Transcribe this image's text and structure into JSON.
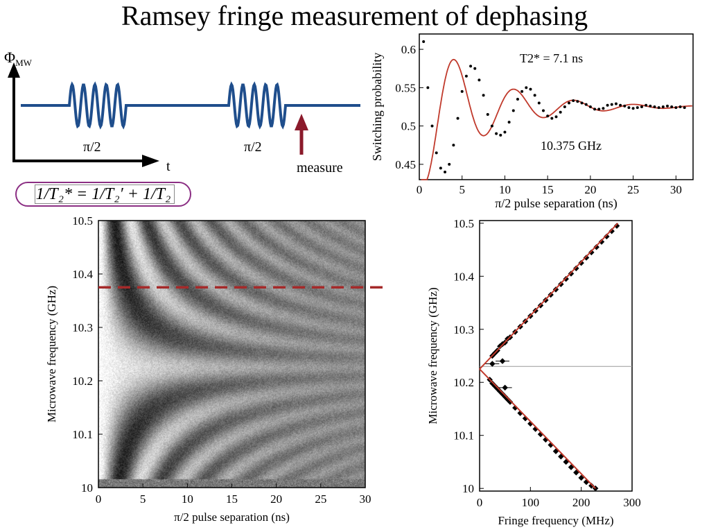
{
  "title": "Ramsey fringe measurement of dephasing",
  "pulse_diagram": {
    "y_label": "Φ",
    "y_label_sub": "MW",
    "x_label": "t",
    "pulse1_label": "π/2",
    "pulse2_label": "π/2",
    "measure_label": "measure",
    "line_color": "#1f4e8c",
    "arrow_color": "#8b1a2b"
  },
  "formula": "1/T₂* = 1/T₂′ + 1/T₂",
  "colors": {
    "fit": "#c0392b",
    "dashed": "#a52a2a",
    "formula_border": "#8b2e83"
  },
  "chart_data": [
    {
      "type": "line",
      "xlabel": "π/2 pulse separation (ns)",
      "ylabel": "Switching probability",
      "xlim": [
        0,
        32
      ],
      "ylim": [
        0.43,
        0.62
      ],
      "xticks": [
        0,
        5,
        10,
        15,
        20,
        25,
        30
      ],
      "yticks": [
        0.45,
        0.5,
        0.55,
        0.6
      ],
      "annotations": [
        "T2* = 7.1 ns",
        "10.375 GHz"
      ],
      "fit_model": {
        "offset": 0.525,
        "amplitude": 0.11,
        "period_ns": 7.0,
        "t2_star_ns": 7.1
      },
      "series": [
        {
          "style": "points",
          "x": [
            0.5,
            1,
            1.5,
            2,
            2.5,
            3,
            3.5,
            4,
            4.5,
            5,
            5.5,
            6,
            6.5,
            7,
            7.5,
            8,
            8.5,
            9,
            9.5,
            10,
            10.5,
            11,
            11.5,
            12,
            12.5,
            13,
            13.5,
            14,
            14.5,
            15,
            15.5,
            16,
            16.5,
            17,
            17.5,
            18,
            18.5,
            19,
            19.5,
            20,
            20.5,
            21,
            21.5,
            22,
            22.5,
            23,
            23.5,
            24,
            24.5,
            25,
            25.5,
            26,
            26.5,
            27,
            27.5,
            28,
            28.5,
            29,
            29.5,
            30,
            30.5,
            31
          ],
          "y": [
            0.61,
            0.55,
            0.5,
            0.465,
            0.445,
            0.44,
            0.45,
            0.475,
            0.51,
            0.545,
            0.565,
            0.578,
            0.575,
            0.56,
            0.54,
            0.515,
            0.5,
            0.49,
            0.488,
            0.492,
            0.505,
            0.52,
            0.535,
            0.545,
            0.55,
            0.548,
            0.54,
            0.53,
            0.52,
            0.513,
            0.51,
            0.512,
            0.518,
            0.525,
            0.53,
            0.533,
            0.532,
            0.53,
            0.528,
            0.525,
            0.522,
            0.522,
            0.523,
            0.527,
            0.528,
            0.529,
            0.527,
            0.526,
            0.524,
            0.523,
            0.524,
            0.525,
            0.527,
            0.526,
            0.525,
            0.524,
            0.525,
            0.526,
            0.525,
            0.524,
            0.525,
            0.524
          ]
        }
      ]
    },
    {
      "type": "heatmap",
      "xlabel": "π/2 pulse separation (ns)",
      "ylabel": "Microwave frequency (GHz)",
      "xlim": [
        0,
        30
      ],
      "ylim": [
        10.0,
        10.5
      ],
      "xticks": [
        0,
        5,
        10,
        15,
        20,
        25,
        30
      ],
      "yticks": [
        10.0,
        10.1,
        10.2,
        10.3,
        10.4,
        10.5
      ],
      "center_frequency_ghz": 10.225,
      "t2_star_ns": 7.1,
      "colormap": "grayscale",
      "reference_line_ghz": 10.375
    },
    {
      "type": "scatter",
      "xlabel": "Fringe frequency (MHz)",
      "ylabel": "Microwave frequency (GHz)",
      "xlim": [
        0,
        300
      ],
      "ylim": [
        9.995,
        10.505
      ],
      "xticks": [
        0,
        100,
        200,
        300
      ],
      "yticks": [
        10.0,
        10.1,
        10.2,
        10.3,
        10.4,
        10.5
      ],
      "horizontal_reference_ghz": 10.23,
      "fit_lines": [
        {
          "x": [
            0,
            272
          ],
          "y": [
            10.225,
            10.5
          ]
        },
        {
          "x": [
            0,
            228
          ],
          "y": [
            10.225,
            10.0
          ]
        }
      ],
      "series": [
        {
          "style": "points",
          "x": [
            25,
            30,
            35,
            40,
            45,
            50,
            55,
            60,
            70,
            80,
            90,
            100,
            110,
            120,
            130,
            140,
            150,
            160,
            170,
            180,
            190,
            200,
            210,
            220,
            230,
            240,
            250,
            260,
            270
          ],
          "y": [
            10.25,
            10.255,
            10.26,
            10.268,
            10.272,
            10.275,
            10.282,
            10.285,
            10.295,
            10.305,
            10.315,
            10.325,
            10.335,
            10.345,
            10.355,
            10.365,
            10.375,
            10.385,
            10.395,
            10.405,
            10.415,
            10.425,
            10.435,
            10.445,
            10.455,
            10.465,
            10.475,
            10.485,
            10.495
          ]
        },
        {
          "style": "points",
          "x": [
            20,
            25,
            30,
            35,
            40,
            45,
            50,
            55,
            60,
            70,
            80,
            90,
            100,
            110,
            120,
            130,
            140,
            150,
            160,
            170,
            180,
            190,
            200,
            210,
            220,
            228
          ],
          "y": [
            10.205,
            10.198,
            10.193,
            10.188,
            10.183,
            10.178,
            10.173,
            10.168,
            10.163,
            10.152,
            10.142,
            10.132,
            10.122,
            10.112,
            10.102,
            10.092,
            10.082,
            10.07,
            10.06,
            10.05,
            10.04,
            10.03,
            10.02,
            10.012,
            10.005,
            10.0
          ]
        },
        {
          "style": "points_with_errorbars",
          "x": [
            25,
            45,
            50
          ],
          "y": [
            10.235,
            10.24,
            10.19
          ]
        }
      ]
    }
  ]
}
